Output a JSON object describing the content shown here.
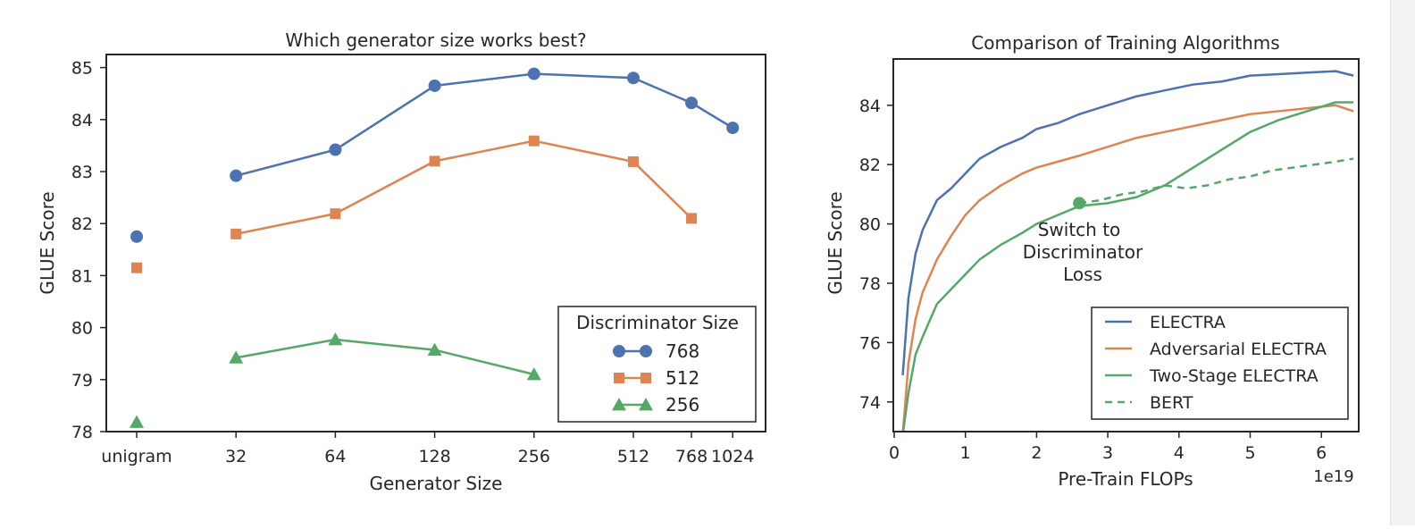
{
  "chart_data": [
    {
      "type": "line",
      "title": "Which generator size works best?",
      "xlabel": "Generator Size",
      "ylabel": "GLUE Score",
      "ylim": [
        78,
        85.25
      ],
      "categories": [
        "unigram",
        "32",
        "64",
        "128",
        "256",
        "512",
        "768",
        "1024"
      ],
      "category_positions": [
        0,
        1,
        2,
        3,
        4,
        5,
        5.585,
        6
      ],
      "yticks": [
        78,
        79,
        80,
        81,
        82,
        83,
        84,
        85
      ],
      "legend": {
        "title": "Discriminator Size",
        "placement": "lower-right"
      },
      "series": [
        {
          "name": "768",
          "marker": "circle",
          "color": "#4c72b0",
          "unigram": 81.75,
          "points": [
            [
              1,
              82.92
            ],
            [
              2,
              83.42
            ],
            [
              3,
              84.65
            ],
            [
              4,
              84.88
            ],
            [
              5,
              84.8
            ],
            [
              5.585,
              84.32
            ],
            [
              6,
              83.84
            ]
          ]
        },
        {
          "name": "512",
          "marker": "square",
          "color": "#dd8452",
          "unigram": 81.15,
          "points": [
            [
              1,
              81.8
            ],
            [
              2,
              82.19
            ],
            [
              3,
              83.2
            ],
            [
              4,
              83.59
            ],
            [
              5,
              83.19
            ],
            [
              5.585,
              82.1
            ]
          ]
        },
        {
          "name": "256",
          "marker": "triangle",
          "color": "#55a868",
          "unigram": 78.18,
          "points": [
            [
              1,
              79.42
            ],
            [
              2,
              79.77
            ],
            [
              3,
              79.57
            ],
            [
              4,
              79.1
            ]
          ]
        }
      ]
    },
    {
      "type": "line",
      "title": "Comparison of Training Algorithms",
      "xlabel": "Pre-Train FLOPs",
      "ylabel": "GLUE Score",
      "x_multiplier": "1e19",
      "xlim": [
        0,
        6.5
      ],
      "ylim": [
        73,
        85.4
      ],
      "xticks": [
        0,
        1,
        2,
        3,
        4,
        5,
        6
      ],
      "yticks": [
        74,
        76,
        78,
        80,
        82,
        84
      ],
      "annotation": {
        "lines": [
          "Switch to",
          "Discriminator",
          "Loss"
        ],
        "x": 2.6,
        "y": 80.7
      },
      "legend": {
        "placement": "lower-right"
      },
      "series": [
        {
          "name": "ELECTRA",
          "color": "#4c72b0",
          "dash": false,
          "x": [
            0.12,
            0.2,
            0.3,
            0.4,
            0.6,
            0.8,
            1.0,
            1.2,
            1.5,
            1.8,
            2.0,
            2.3,
            2.6,
            3.0,
            3.4,
            3.8,
            4.2,
            4.6,
            5.0,
            5.4,
            5.8,
            6.2,
            6.45
          ],
          "y": [
            74.9,
            77.5,
            79.0,
            79.8,
            80.8,
            81.2,
            81.7,
            82.2,
            82.6,
            82.9,
            83.2,
            83.4,
            83.7,
            84.0,
            84.3,
            84.5,
            84.7,
            84.8,
            85.0,
            85.05,
            85.1,
            85.15,
            85.0
          ]
        },
        {
          "name": "Adversarial ELECTRA",
          "color": "#dd8452",
          "dash": false,
          "x": [
            0.12,
            0.2,
            0.3,
            0.4,
            0.6,
            0.8,
            1.0,
            1.2,
            1.5,
            1.8,
            2.0,
            2.3,
            2.6,
            3.0,
            3.4,
            3.8,
            4.2,
            4.6,
            5.0,
            5.4,
            5.8,
            6.2,
            6.45
          ],
          "y": [
            72.9,
            75.3,
            76.8,
            77.7,
            78.8,
            79.6,
            80.3,
            80.8,
            81.3,
            81.7,
            81.9,
            82.1,
            82.3,
            82.6,
            82.9,
            83.1,
            83.3,
            83.5,
            83.7,
            83.8,
            83.9,
            84.0,
            83.8
          ]
        },
        {
          "name": "Two-Stage ELECTRA",
          "color": "#55a868",
          "dash": false,
          "x": [
            0.12,
            0.2,
            0.3,
            0.4,
            0.6,
            0.8,
            1.0,
            1.2,
            1.5,
            1.8,
            2.0,
            2.3,
            2.6,
            3.0,
            3.4,
            3.8,
            4.2,
            4.6,
            5.0,
            5.4,
            5.8,
            6.2,
            6.45
          ],
          "y": [
            72.9,
            74.3,
            75.6,
            76.2,
            77.3,
            77.8,
            78.3,
            78.8,
            79.3,
            79.7,
            80.0,
            80.3,
            80.6,
            80.7,
            80.9,
            81.3,
            81.9,
            82.5,
            83.1,
            83.5,
            83.8,
            84.1,
            84.1
          ]
        },
        {
          "name": "BERT",
          "color": "#55a868",
          "dash": true,
          "x": [
            2.6,
            2.9,
            3.2,
            3.5,
            3.8,
            4.1,
            4.4,
            4.7,
            5.0,
            5.3,
            5.6,
            5.9,
            6.2,
            6.45
          ],
          "y": [
            80.7,
            80.8,
            81.0,
            81.1,
            81.3,
            81.2,
            81.3,
            81.5,
            81.6,
            81.8,
            81.9,
            82.0,
            82.1,
            82.2
          ]
        }
      ]
    }
  ]
}
